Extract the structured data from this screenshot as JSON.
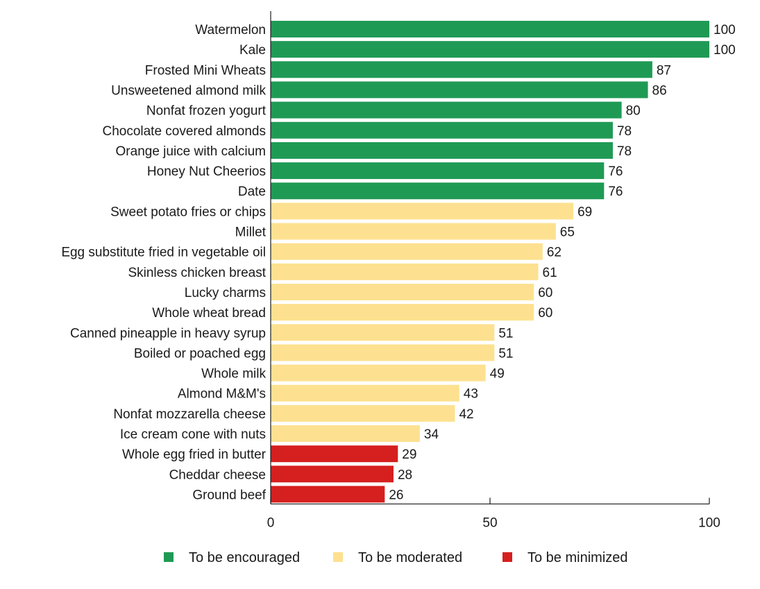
{
  "chart_data": {
    "type": "bar",
    "orientation": "horizontal",
    "title": "",
    "xlabel": "",
    "ylabel": "",
    "xlim": [
      0,
      100
    ],
    "x_ticks": [
      0,
      50,
      100
    ],
    "grid": false,
    "legend_position": "bottom",
    "categories": [
      "Watermelon",
      "Kale",
      "Frosted Mini Wheats",
      "Unsweetened almond milk",
      "Nonfat frozen yogurt",
      "Chocolate covered almonds",
      "Orange juice with calcium",
      "Honey Nut Cheerios",
      "Date",
      "Sweet potato fries or chips",
      "Millet",
      "Egg substitute fried in vegetable oil",
      "Skinless chicken breast",
      "Lucky charms",
      "Whole wheat bread",
      "Canned pineapple in heavy syrup",
      "Boiled or poached egg",
      "Whole milk",
      "Almond M&M's",
      "Nonfat mozzarella cheese",
      "Ice cream cone with nuts",
      "Whole egg fried in butter",
      "Cheddar cheese",
      "Ground beef"
    ],
    "values": [
      100,
      100,
      87,
      86,
      80,
      78,
      78,
      76,
      76,
      69,
      65,
      62,
      61,
      60,
      60,
      51,
      51,
      49,
      43,
      42,
      34,
      29,
      28,
      26
    ],
    "groups": [
      "encouraged",
      "encouraged",
      "encouraged",
      "encouraged",
      "encouraged",
      "encouraged",
      "encouraged",
      "encouraged",
      "encouraged",
      "moderated",
      "moderated",
      "moderated",
      "moderated",
      "moderated",
      "moderated",
      "moderated",
      "moderated",
      "moderated",
      "moderated",
      "moderated",
      "moderated",
      "minimized",
      "minimized",
      "minimized"
    ],
    "legend": [
      {
        "key": "encouraged",
        "label": "To be encouraged",
        "color": "#1f9a55"
      },
      {
        "key": "moderated",
        "label": "To be moderated",
        "color": "#fde190"
      },
      {
        "key": "minimized",
        "label": "To be minimized",
        "color": "#d61f1f"
      }
    ]
  }
}
